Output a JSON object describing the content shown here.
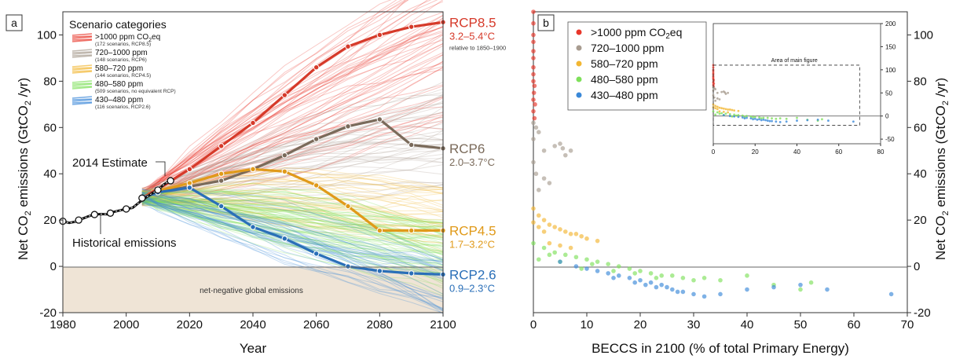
{
  "chart_data": [
    {
      "type": "line",
      "panel_label": "a",
      "xlabel": "Year",
      "ylabel": "Net CO2 emissions (GtCO2 /yr)",
      "xlim": [
        1980,
        2100
      ],
      "ylim": [
        -20,
        110
      ],
      "x_ticks": [
        "1980",
        "2000",
        "2020",
        "2040",
        "2060",
        "2080",
        "2100"
      ],
      "y_ticks": [
        "-20",
        "0",
        "20",
        "40",
        "60",
        "80",
        "100"
      ],
      "legend": {
        "title": "Scenario categories",
        "placement": "top-left",
        "entries": [
          {
            "label": ">1000 ppm CO2eq",
            "note": "(172 scenarios, RCP8.5)",
            "color": "#e8362a"
          },
          {
            "label": "720–1000 ppm",
            "note": "(148 scenarios, RCP6)",
            "color": "#a89c90"
          },
          {
            "label": "580–720 ppm",
            "note": "(144 scenarios, RCP4.5)",
            "color": "#f2b632"
          },
          {
            "label": "480–580 ppm",
            "note": "(509 scenarios, no equivalent RCP)",
            "color": "#7ee05a"
          },
          {
            "label": "430–480 ppm",
            "note": "(116 scenarios, RCP2.6)",
            "color": "#3a88d8"
          }
        ]
      },
      "historical": {
        "name": "Historical emissions",
        "x": [
          1980,
          1982,
          1984,
          1986,
          1988,
          1990,
          1992,
          1994,
          1996,
          1998,
          2000,
          2002,
          2004,
          2006,
          2008,
          2010,
          2012,
          2014
        ],
        "y": [
          19.5,
          18.8,
          19.3,
          20.5,
          21.6,
          22.4,
          22.6,
          22.5,
          23.5,
          24.2,
          24.8,
          25.3,
          27.5,
          29.5,
          31.4,
          33.0,
          35.5,
          37.0
        ],
        "markers_x": [
          1980,
          1985,
          1990,
          1995,
          2000,
          2005,
          2010,
          2014
        ],
        "markers_y": [
          19.5,
          20.0,
          22.4,
          23.0,
          24.8,
          29.5,
          33.0,
          37.0
        ]
      },
      "rcp_lines": [
        {
          "name": "RCP8.5",
          "range": "3.2–5.4°C",
          "note": "relative to 1850–1900",
          "color": "#d63a2a",
          "x": [
            2005,
            2010,
            2020,
            2030,
            2040,
            2050,
            2060,
            2070,
            2080,
            2090,
            2100
          ],
          "y": [
            29.5,
            33.5,
            42,
            52,
            62,
            74,
            86,
            95,
            100,
            103.5,
            105.5
          ]
        },
        {
          "name": "RCP6",
          "range": "2.0–3.7°C",
          "color": "#7a6a5a",
          "x": [
            2005,
            2010,
            2020,
            2030,
            2040,
            2050,
            2060,
            2070,
            2080,
            2090,
            2100
          ],
          "y": [
            29.5,
            32,
            34.5,
            37,
            42,
            48,
            55,
            60.5,
            63.5,
            52.5,
            51
          ]
        },
        {
          "name": "RCP4.5",
          "range": "1.7–3.2°C",
          "color": "#e09a1a",
          "x": [
            2005,
            2010,
            2020,
            2030,
            2040,
            2050,
            2060,
            2070,
            2080,
            2090,
            2100
          ],
          "y": [
            29.5,
            32.5,
            36,
            40,
            42,
            41,
            35,
            26,
            15.5,
            15.5,
            15.5
          ]
        },
        {
          "name": "RCP2.6",
          "range": "0.9–2.3°C",
          "color": "#2a6fb8",
          "x": [
            2005,
            2010,
            2020,
            2030,
            2040,
            2050,
            2060,
            2070,
            2080,
            2090,
            2100
          ],
          "y": [
            29.5,
            32,
            34,
            26,
            17,
            12,
            5.5,
            0,
            -2,
            -3,
            -3.5
          ]
        }
      ],
      "annotations": [
        "2014 Estimate",
        "Historical emissions",
        "net-negative global emissions"
      ]
    },
    {
      "type": "scatter",
      "panel_label": "b",
      "xlabel": "BECCS in 2100 (% of total Primary Energy)",
      "ylabel": "Net CO2 emissions (GtCO2 /yr)",
      "xlim": [
        0,
        70
      ],
      "ylim": [
        -20,
        110
      ],
      "x_ticks": [
        "0",
        "10",
        "20",
        "30",
        "40",
        "50",
        "60",
        "70"
      ],
      "y_ticks": [
        "-20",
        "0",
        "20",
        "40",
        "60",
        "80",
        "100"
      ],
      "legend": {
        "placement": "top-left",
        "entries": [
          {
            "label": ">1000 ppm CO2eq",
            "color": "#e8362a"
          },
          {
            "label": "720–1000 ppm",
            "color": "#a89c90"
          },
          {
            "label": "580–720 ppm",
            "color": "#f2b632"
          },
          {
            "label": "480–580 ppm",
            "color": "#7ee05a"
          },
          {
            "label": "430–480 ppm",
            "color": "#3a88d8"
          }
        ]
      },
      "series": [
        {
          "name": ">1000 ppm CO2eq",
          "color": "#e8362a",
          "x": [
            0,
            0,
            0,
            0,
            0,
            0,
            0,
            0,
            0.2,
            0.1,
            0,
            0.3,
            0,
            0.2,
            0
          ],
          "y": [
            105,
            100,
            97,
            93,
            90,
            86,
            83,
            80,
            78,
            75,
            72,
            70,
            67,
            64,
            110
          ]
        },
        {
          "name": "720–1000 ppm",
          "color": "#a89c90",
          "x": [
            0,
            0.5,
            1,
            2,
            4,
            5,
            5.5,
            6,
            7,
            0,
            0.5,
            2,
            3,
            1,
            0
          ],
          "y": [
            62,
            60,
            58,
            50,
            52,
            53,
            51,
            48,
            50,
            45,
            40,
            38,
            36,
            33,
            55
          ]
        },
        {
          "name": "580–720 ppm",
          "color": "#f2b632",
          "x": [
            0,
            1,
            2,
            3,
            4,
            5,
            6,
            7,
            8,
            9,
            10,
            12,
            3,
            5,
            7,
            0,
            1,
            2
          ],
          "y": [
            25,
            22,
            20,
            18,
            17,
            16,
            15,
            14,
            14,
            13,
            12,
            11,
            10,
            9,
            8,
            19,
            17,
            15
          ]
        },
        {
          "name": "480–580 ppm",
          "color": "#7ee05a",
          "x": [
            0,
            2,
            4,
            6,
            8,
            10,
            12,
            14,
            16,
            18,
            20,
            22,
            24,
            26,
            28,
            30,
            32,
            35,
            40,
            45,
            50,
            52,
            1,
            3,
            5,
            9,
            11,
            15,
            19,
            23
          ],
          "y": [
            10,
            8,
            6,
            5,
            4,
            3,
            2,
            1,
            0,
            -1,
            -2,
            -3,
            -4,
            -4,
            -5,
            -6,
            -5,
            -6,
            -4,
            -8,
            -10,
            -7,
            3,
            5,
            2,
            -1,
            1,
            -2,
            -3,
            -5
          ]
        },
        {
          "name": "430–480 ppm",
          "color": "#3a88d8",
          "x": [
            5,
            8,
            10,
            12,
            14,
            16,
            18,
            20,
            22,
            24,
            25,
            26,
            28,
            30,
            32,
            35,
            40,
            45,
            50,
            55,
            67,
            15,
            19,
            21,
            23,
            27
          ],
          "y": [
            2,
            0,
            -1,
            -2,
            -3,
            -4,
            -5,
            -6,
            -7,
            -8,
            -9,
            -10,
            -11,
            -12,
            -13,
            -12,
            -10,
            -9,
            -8,
            -10,
            -12,
            -5,
            -7,
            -8,
            -9,
            -11
          ]
        }
      ],
      "inset": {
        "xlim": [
          0,
          80
        ],
        "ylim": [
          -60,
          200
        ],
        "x_ticks": [
          "0",
          "20",
          "40",
          "60",
          "80"
        ],
        "y_ticks": [
          "-50",
          "0",
          "50",
          "100",
          "150",
          "200"
        ],
        "annotation": "Area of main figure",
        "box_x": [
          0,
          70
        ],
        "box_y": [
          -20,
          110
        ]
      }
    }
  ]
}
